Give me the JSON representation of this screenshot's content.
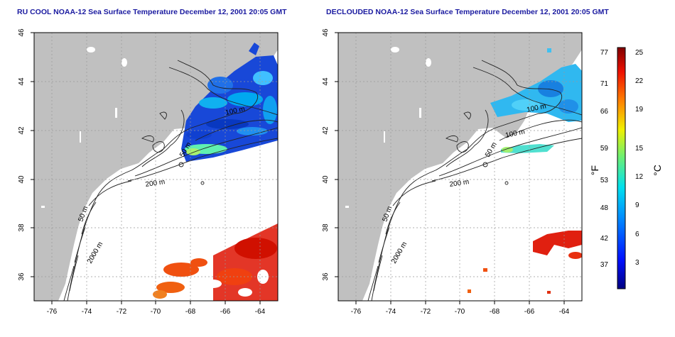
{
  "panels": [
    {
      "title": "RU COOL NOAA-12 Sea Surface Temperature December 12, 2001 20:05 GMT",
      "contour_labels": [
        "100 m",
        "50 m",
        "200 m",
        "50 m",
        "2000 m"
      ]
    },
    {
      "title": "DECLOUDED NOAA-12 Sea Surface Temperature December 12, 2001 20:05 GMT",
      "contour_labels": [
        "100 m",
        "100 m",
        "50 m",
        "200 m",
        "50 m",
        "2000 m"
      ]
    }
  ],
  "axes": {
    "lon_ticks": [
      "-76",
      "-74",
      "-72",
      "-70",
      "-68",
      "-66",
      "-64"
    ],
    "lat_ticks": [
      "46",
      "44",
      "42",
      "40",
      "38",
      "36"
    ],
    "lon_range": [
      -77.2,
      -63
    ],
    "lat_range": [
      35,
      46
    ]
  },
  "colorbar": {
    "f_label": "°F",
    "c_label": "°C",
    "f_ticks": [
      "77",
      "71",
      "66",
      "59",
      "53",
      "48",
      "42",
      "37"
    ],
    "c_ticks": [
      "25",
      "22",
      "19",
      "15",
      "12",
      "9",
      "6",
      "3"
    ],
    "c_range": [
      0,
      26
    ]
  },
  "colors": {
    "land": "#c0c0c0",
    "ocean": "#ffffff",
    "title": "#1a1aa0",
    "grid": "#999999"
  }
}
